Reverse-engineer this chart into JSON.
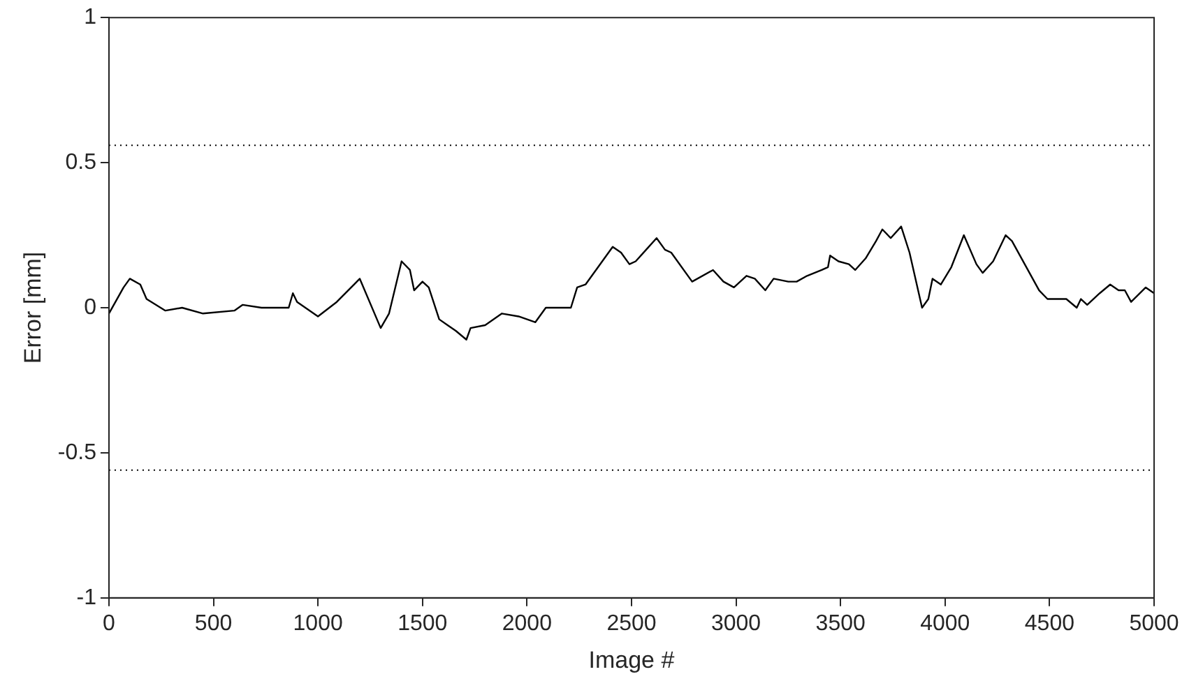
{
  "chart_data": {
    "type": "line",
    "xlabel": "Image #",
    "ylabel": "Error [mm]",
    "xlim": [
      0,
      5000
    ],
    "xticks": [
      0,
      500,
      1000,
      1500,
      2000,
      2500,
      3000,
      3500,
      4000,
      4500,
      5000
    ],
    "ylim": [
      -1,
      1
    ],
    "yticks": [
      -1,
      -0.5,
      0,
      0.5,
      1
    ],
    "grid": false,
    "legend": false,
    "marker": "none",
    "line_style": "solid",
    "ref_lines": [
      {
        "axis": "y",
        "value": 0.56,
        "color": "#000000",
        "line_style": "dotted"
      },
      {
        "axis": "y",
        "value": -0.56,
        "color": "#000000",
        "line_style": "dotted"
      }
    ],
    "series": [
      {
        "color": "#000000",
        "x": [
          0,
          70,
          100,
          150,
          180,
          270,
          350,
          450,
          600,
          640,
          730,
          860,
          880,
          900,
          1000,
          1090,
          1200,
          1300,
          1340,
          1400,
          1440,
          1460,
          1500,
          1530,
          1580,
          1620,
          1660,
          1710,
          1730,
          1800,
          1880,
          1960,
          2040,
          2090,
          2210,
          2240,
          2280,
          2360,
          2410,
          2450,
          2490,
          2520,
          2570,
          2620,
          2660,
          2690,
          2790,
          2890,
          2940,
          2990,
          3050,
          3090,
          3140,
          3180,
          3250,
          3290,
          3340,
          3410,
          3440,
          3450,
          3490,
          3540,
          3570,
          3620,
          3670,
          3700,
          3740,
          3790,
          3830,
          3890,
          3920,
          3940,
          3980,
          4030,
          4090,
          4150,
          4180,
          4230,
          4290,
          4320,
          4450,
          4490,
          4580,
          4630,
          4650,
          4680,
          4740,
          4790,
          4830,
          4860,
          4890,
          4960,
          5000
        ],
        "values": [
          -0.02,
          0.07,
          0.1,
          0.08,
          0.03,
          -0.01,
          0.0,
          -0.02,
          -0.01,
          0.01,
          0.0,
          0.0,
          0.05,
          0.02,
          -0.03,
          0.02,
          0.1,
          -0.07,
          -0.02,
          0.16,
          0.13,
          0.06,
          0.09,
          0.07,
          -0.04,
          -0.06,
          -0.08,
          -0.11,
          -0.07,
          -0.06,
          -0.02,
          -0.03,
          -0.05,
          0.0,
          0.0,
          0.07,
          0.08,
          0.16,
          0.21,
          0.19,
          0.15,
          0.16,
          0.2,
          0.24,
          0.2,
          0.19,
          0.09,
          0.13,
          0.09,
          0.07,
          0.11,
          0.1,
          0.06,
          0.1,
          0.09,
          0.09,
          0.11,
          0.13,
          0.14,
          0.18,
          0.16,
          0.15,
          0.13,
          0.17,
          0.23,
          0.27,
          0.24,
          0.28,
          0.19,
          0.0,
          0.03,
          0.1,
          0.08,
          0.14,
          0.25,
          0.15,
          0.12,
          0.16,
          0.25,
          0.23,
          0.06,
          0.03,
          0.03,
          0.0,
          0.03,
          0.01,
          0.05,
          0.08,
          0.06,
          0.06,
          0.02,
          0.07,
          0.05
        ]
      }
    ]
  }
}
